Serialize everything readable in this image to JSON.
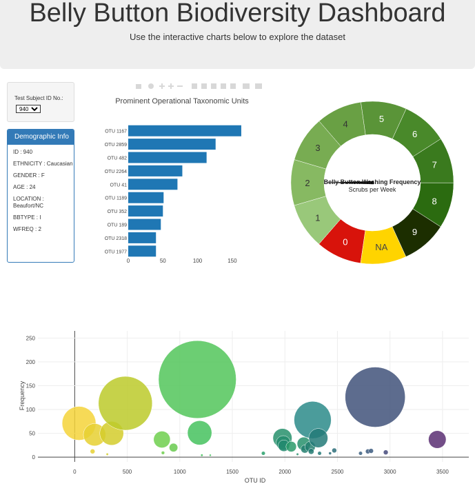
{
  "header": {
    "title": "Belly Button Biodiversity Dashboard",
    "subtitle": "Use the interactive charts below to explore the dataset"
  },
  "selector": {
    "label": "Test Subject ID No.:",
    "value": "940",
    "options": [
      "940"
    ]
  },
  "demographics": {
    "title": "Demographic Info",
    "rows": [
      "ID : 940",
      "ETHNICITY : Caucasian",
      "GENDER : F",
      "AGE : 24",
      "LOCATION : Beaufort/NC",
      "BBTYPE : I",
      "WFREQ : 2"
    ]
  },
  "chart_data": [
    {
      "type": "bar",
      "orientation": "horizontal",
      "title": "Prominent Operational Taxonomic Units",
      "categories": [
        "OTU 1167",
        "OTU 2859",
        "OTU 482",
        "OTU 2264",
        "OTU 41",
        "OTU 1189",
        "OTU 352",
        "OTU 189",
        "OTU 2318",
        "OTU 1977"
      ],
      "values": [
        163,
        126,
        113,
        78,
        71,
        51,
        50,
        47,
        40,
        40
      ],
      "xlim": [
        0,
        170
      ],
      "xticks": [
        0,
        50,
        100,
        150
      ],
      "color": "#1f77b4"
    },
    {
      "type": "gauge",
      "title": "Belly Button Washing Frequency",
      "subtitle": "Scrubs per Week",
      "value": 2,
      "segments": [
        {
          "label": "0",
          "color": "#d8130b",
          "text_color": "#ffffff"
        },
        {
          "label": "NA",
          "color": "#ffd400",
          "text_color": "#444444"
        },
        {
          "label": "9",
          "color": "#1c2e00",
          "text_color": "#ffffff"
        },
        {
          "label": "8",
          "color": "#2b6b10",
          "text_color": "#ffffff"
        },
        {
          "label": "7",
          "color": "#3a7a1e",
          "text_color": "#ffffff"
        },
        {
          "label": "6",
          "color": "#49892a",
          "text_color": "#ffffff"
        },
        {
          "label": "5",
          "color": "#5a9438",
          "text_color": "#ffffff"
        },
        {
          "label": "4",
          "color": "#69a044",
          "text_color": "#333333"
        },
        {
          "label": "3",
          "color": "#78ac52",
          "text_color": "#333333"
        },
        {
          "label": "2",
          "color": "#87b962",
          "text_color": "#333333"
        },
        {
          "label": "1",
          "color": "#99c87a",
          "text_color": "#333333"
        }
      ]
    },
    {
      "type": "scatter",
      "subtype": "bubble",
      "xlabel": "OTU ID",
      "ylabel": "Frequency",
      "xlim": [
        -350,
        3750
      ],
      "ylim": [
        -10,
        265
      ],
      "xticks": [
        0,
        500,
        1000,
        1500,
        2000,
        2500,
        3000,
        3500
      ],
      "yticks": [
        0,
        50,
        100,
        150,
        200,
        250
      ],
      "points": [
        {
          "x": 41,
          "y": 71,
          "size": 71,
          "color": "#f5d43a"
        },
        {
          "x": 189,
          "y": 47,
          "size": 47,
          "color": "#e6d031"
        },
        {
          "x": 352,
          "y": 50,
          "size": 50,
          "color": "#d3cc2c"
        },
        {
          "x": 482,
          "y": 113,
          "size": 113,
          "color": "#bcca2a"
        },
        {
          "x": 170,
          "y": 12,
          "size": 10,
          "color": "#e6d031"
        },
        {
          "x": 310,
          "y": 6,
          "size": 5,
          "color": "#d3cc2c"
        },
        {
          "x": 830,
          "y": 37,
          "size": 35,
          "color": "#6fcf4d"
        },
        {
          "x": 940,
          "y": 20,
          "size": 18,
          "color": "#69ca4f"
        },
        {
          "x": 840,
          "y": 9,
          "size": 7,
          "color": "#6fcf4d"
        },
        {
          "x": 1167,
          "y": 163,
          "size": 163,
          "color": "#52c65a"
        },
        {
          "x": 1189,
          "y": 51,
          "size": 51,
          "color": "#45c25e"
        },
        {
          "x": 1210,
          "y": 4,
          "size": 5,
          "color": "#45c25e"
        },
        {
          "x": 1290,
          "y": 4,
          "size": 4,
          "color": "#45c25e"
        },
        {
          "x": 1795,
          "y": 8,
          "size": 8,
          "color": "#27a06a"
        },
        {
          "x": 1977,
          "y": 40,
          "size": 40,
          "color": "#27906c"
        },
        {
          "x": 1985,
          "y": 30,
          "size": 30,
          "color": "#258c6d"
        },
        {
          "x": 1990,
          "y": 24,
          "size": 24,
          "color": "#228a6e"
        },
        {
          "x": 2060,
          "y": 22,
          "size": 22,
          "color": "#2a9a6a"
        },
        {
          "x": 2180,
          "y": 28,
          "size": 28,
          "color": "#27906c"
        },
        {
          "x": 2190,
          "y": 17,
          "size": 17,
          "color": "#257f70"
        },
        {
          "x": 2240,
          "y": 22,
          "size": 22,
          "color": "#257f70"
        },
        {
          "x": 2250,
          "y": 12,
          "size": 12,
          "color": "#237a72"
        },
        {
          "x": 2264,
          "y": 78,
          "size": 78,
          "color": "#2b8b89"
        },
        {
          "x": 2318,
          "y": 40,
          "size": 40,
          "color": "#237a78"
        },
        {
          "x": 2330,
          "y": 8,
          "size": 8,
          "color": "#237a78"
        },
        {
          "x": 2120,
          "y": 6,
          "size": 5,
          "color": "#27906c"
        },
        {
          "x": 2470,
          "y": 14,
          "size": 10,
          "color": "#2d6f7a"
        },
        {
          "x": 2430,
          "y": 8,
          "size": 6,
          "color": "#2d6f7a"
        },
        {
          "x": 2720,
          "y": 8,
          "size": 8,
          "color": "#3a5f80"
        },
        {
          "x": 2790,
          "y": 12,
          "size": 10,
          "color": "#3c5b7f"
        },
        {
          "x": 2820,
          "y": 13,
          "size": 10,
          "color": "#3c5b7f"
        },
        {
          "x": 2859,
          "y": 126,
          "size": 126,
          "color": "#41527a"
        },
        {
          "x": 2960,
          "y": 10,
          "size": 10,
          "color": "#44497b"
        },
        {
          "x": 3450,
          "y": 37,
          "size": 37,
          "color": "#5b2f73"
        }
      ]
    }
  ]
}
